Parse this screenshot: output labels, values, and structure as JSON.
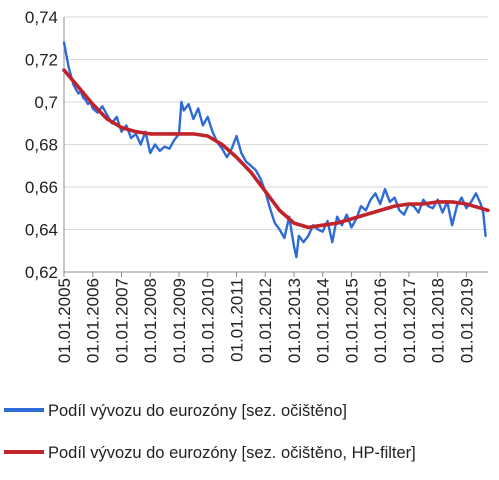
{
  "chart_data": {
    "type": "line",
    "title": "",
    "xlabel": "",
    "ylabel": "",
    "x_tick_labels": [
      "01.01.2005",
      "01.01.2006",
      "01.01.2007",
      "01.01.2008",
      "01.01.2009",
      "01.01.2010",
      "01.01.2011",
      "01.01.2012",
      "01.01.2013",
      "01.01.2014",
      "01.01.2015",
      "01.01.2016",
      "01.01.2017",
      "01.01.2018",
      "01.01.2019"
    ],
    "x_range": [
      "01.01.2005",
      "01.10.2019"
    ],
    "y_tick_labels": [
      "0,62",
      "0,64",
      "0,66",
      "0,68",
      "0,7",
      "0,72",
      "0,74"
    ],
    "ylim": [
      0.62,
      0.74
    ],
    "y_ticks": [
      0.62,
      0.64,
      0.66,
      0.68,
      0.7,
      0.72,
      0.74
    ],
    "grid": true,
    "legend_position": "bottom",
    "series": [
      {
        "name": "Podíl vývozu do eurozóny [sez. očištěno]",
        "color": "#2e6bd6",
        "x": [
          2005.0,
          2005.083,
          2005.167,
          2005.25,
          2005.333,
          2005.417,
          2005.5,
          2005.583,
          2005.667,
          2005.75,
          2005.833,
          2005.917,
          2006.0,
          2006.167,
          2006.333,
          2006.5,
          2006.667,
          2006.833,
          2007.0,
          2007.167,
          2007.333,
          2007.5,
          2007.667,
          2007.833,
          2008.0,
          2008.167,
          2008.333,
          2008.5,
          2008.667,
          2008.833,
          2009.0,
          2009.083,
          2009.167,
          2009.333,
          2009.5,
          2009.667,
          2009.833,
          2010.0,
          2010.167,
          2010.333,
          2010.5,
          2010.667,
          2010.833,
          2011.0,
          2011.167,
          2011.333,
          2011.5,
          2011.667,
          2011.833,
          2012.0,
          2012.167,
          2012.333,
          2012.5,
          2012.667,
          2012.833,
          2013.0,
          2013.083,
          2013.167,
          2013.333,
          2013.5,
          2013.667,
          2013.833,
          2014.0,
          2014.167,
          2014.333,
          2014.5,
          2014.667,
          2014.833,
          2015.0,
          2015.167,
          2015.333,
          2015.5,
          2015.667,
          2015.833,
          2016.0,
          2016.167,
          2016.333,
          2016.5,
          2016.667,
          2016.833,
          2017.0,
          2017.167,
          2017.333,
          2017.5,
          2017.667,
          2017.833,
          2018.0,
          2018.167,
          2018.333,
          2018.5,
          2018.667,
          2018.833,
          2019.0,
          2019.167,
          2019.333,
          2019.5,
          2019.583,
          2019.667
        ],
        "values": [
          0.728,
          0.722,
          0.716,
          0.712,
          0.708,
          0.706,
          0.704,
          0.705,
          0.702,
          0.701,
          0.699,
          0.7,
          0.697,
          0.695,
          0.698,
          0.694,
          0.69,
          0.693,
          0.686,
          0.689,
          0.683,
          0.685,
          0.68,
          0.686,
          0.676,
          0.68,
          0.677,
          0.679,
          0.678,
          0.682,
          0.685,
          0.7,
          0.696,
          0.699,
          0.692,
          0.697,
          0.689,
          0.693,
          0.686,
          0.681,
          0.678,
          0.674,
          0.678,
          0.684,
          0.676,
          0.672,
          0.67,
          0.668,
          0.664,
          0.658,
          0.65,
          0.643,
          0.64,
          0.636,
          0.646,
          0.632,
          0.627,
          0.637,
          0.634,
          0.637,
          0.642,
          0.64,
          0.639,
          0.644,
          0.634,
          0.646,
          0.642,
          0.647,
          0.641,
          0.645,
          0.651,
          0.649,
          0.654,
          0.657,
          0.652,
          0.659,
          0.653,
          0.655,
          0.649,
          0.647,
          0.652,
          0.651,
          0.648,
          0.654,
          0.651,
          0.65,
          0.654,
          0.648,
          0.653,
          0.642,
          0.651,
          0.655,
          0.65,
          0.653,
          0.657,
          0.652,
          0.648,
          0.637
        ]
      },
      {
        "name": "Podíl vývozu do eurozóny [sez. očištěno, HP-filter]",
        "color": "#c0232a",
        "x": [
          2005.0,
          2005.5,
          2006.0,
          2006.5,
          2007.0,
          2007.5,
          2008.0,
          2008.5,
          2009.0,
          2009.5,
          2010.0,
          2010.5,
          2011.0,
          2011.5,
          2012.0,
          2012.5,
          2013.0,
          2013.5,
          2014.0,
          2014.5,
          2015.0,
          2015.5,
          2016.0,
          2016.5,
          2017.0,
          2017.5,
          2018.0,
          2018.5,
          2019.0,
          2019.5,
          2019.75
        ],
        "values": [
          0.715,
          0.707,
          0.699,
          0.692,
          0.688,
          0.686,
          0.685,
          0.685,
          0.685,
          0.685,
          0.684,
          0.68,
          0.674,
          0.667,
          0.658,
          0.649,
          0.643,
          0.641,
          0.642,
          0.643,
          0.645,
          0.647,
          0.649,
          0.651,
          0.652,
          0.652,
          0.653,
          0.653,
          0.652,
          0.65,
          0.649
        ]
      }
    ]
  }
}
